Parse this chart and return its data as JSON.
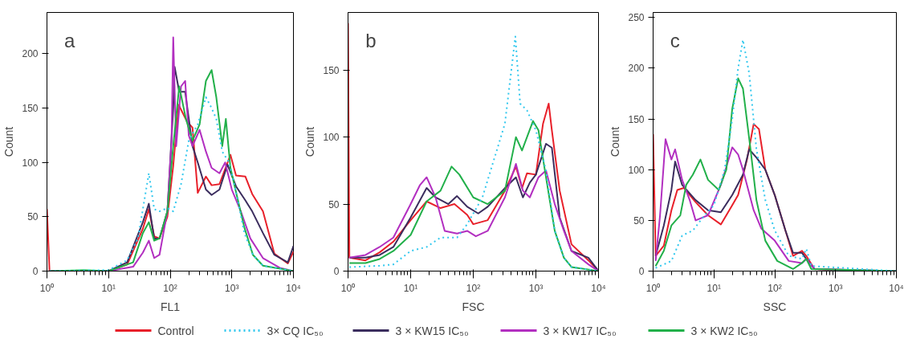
{
  "chart_data": [
    {
      "type": "line",
      "annotations": [
        "a"
      ],
      "xlabel": "FL1",
      "ylabel": "Count",
      "log": "x",
      "grid": false,
      "legend": "bottom",
      "marker": "none",
      "xlim": [
        1,
        10000
      ],
      "xticks": [
        {
          "value": 1,
          "label": "10⁰"
        },
        {
          "value": 10,
          "label": "10¹"
        },
        {
          "value": 100,
          "label": "10²"
        },
        {
          "value": 1000,
          "label": "10³"
        },
        {
          "value": 10000,
          "label": "10⁴"
        }
      ],
      "ylim": [
        0,
        238
      ],
      "yticks": [
        0,
        50,
        100,
        150,
        200
      ],
      "series": [
        {
          "name": "Control",
          "color": "#e8202a",
          "x": [
            1,
            1.1,
            10,
            20,
            36,
            45,
            55,
            67,
            90,
            112,
            137,
            186,
            230,
            280,
            380,
            470,
            630,
            950,
            1170,
            1660,
            2140,
            3200,
            4900,
            8100,
            10000
          ],
          "values": [
            57,
            0,
            0,
            6,
            39,
            57,
            32,
            30,
            50,
            97,
            153,
            138,
            132,
            72,
            87,
            79,
            80,
            107,
            88,
            87,
            71,
            55,
            16,
            7,
            18
          ]
        },
        {
          "name": "3× CQ IC₅₀",
          "color": "#33c8ee",
          "line_style": "dotted",
          "x": [
            1.1,
            10,
            20,
            30,
            45,
            55,
            67,
            90,
            112,
            150,
            200,
            280,
            380,
            470,
            560,
            700,
            900,
            1200,
            1600,
            2200,
            3200,
            10000
          ],
          "values": [
            0,
            1,
            10,
            30,
            90,
            57,
            55,
            58,
            55,
            80,
            120,
            135,
            160,
            150,
            140,
            110,
            100,
            70,
            35,
            15,
            5,
            0
          ]
        },
        {
          "name": "3 × KW15 IC₅₀",
          "color": "#3b2d5e",
          "x": [
            1.1,
            10,
            20,
            36,
            45,
            55,
            67,
            90,
            112,
            118,
            140,
            175,
            230,
            280,
            380,
            470,
            630,
            850,
            1170,
            1660,
            2140,
            3200,
            4900,
            8100,
            10000
          ],
          "values": [
            0,
            0,
            8,
            45,
            62,
            30,
            30,
            55,
            150,
            188,
            165,
            165,
            115,
            100,
            75,
            70,
            75,
            98,
            78,
            65,
            55,
            35,
            15,
            8,
            23
          ]
        },
        {
          "name": "3 × KW17 IC₅₀",
          "color": "#b22fc0",
          "x": [
            1.1,
            10,
            25,
            36,
            45,
            55,
            67,
            90,
            105,
            112,
            125,
            150,
            175,
            200,
            230,
            300,
            380,
            470,
            630,
            780,
            1000,
            1400,
            2000,
            3200,
            6000,
            10000
          ],
          "values": [
            0,
            0,
            4,
            17,
            28,
            12,
            15,
            55,
            120,
            215,
            115,
            170,
            175,
            125,
            115,
            130,
            110,
            95,
            90,
            100,
            75,
            55,
            30,
            12,
            3,
            0
          ]
        },
        {
          "name": "3 × KW2 IC₅₀",
          "color": "#22b04a",
          "x": [
            1.1,
            4,
            10,
            25,
            36,
            45,
            55,
            67,
            90,
            112,
            140,
            180,
            230,
            300,
            380,
            470,
            560,
            700,
            800,
            950,
            1200,
            1600,
            2200,
            3200,
            10000
          ],
          "values": [
            0,
            1,
            0,
            8,
            35,
            45,
            28,
            30,
            55,
            115,
            170,
            140,
            120,
            135,
            175,
            185,
            160,
            115,
            140,
            95,
            70,
            40,
            15,
            5,
            0
          ]
        }
      ]
    },
    {
      "type": "line",
      "annotations": [
        "b"
      ],
      "xlabel": "FSC",
      "ylabel": "Count",
      "log": "x",
      "grid": false,
      "marker": "none",
      "xlim": [
        1,
        10000
      ],
      "xticks": [
        {
          "value": 1,
          "label": "10⁰"
        },
        {
          "value": 10,
          "label": "10¹"
        },
        {
          "value": 100,
          "label": "10²"
        },
        {
          "value": 1000,
          "label": "10³"
        },
        {
          "value": 10000,
          "label": "10⁴"
        }
      ],
      "ylim": [
        0,
        193
      ],
      "yticks": [
        0,
        50,
        100,
        150
      ],
      "series": [
        {
          "color": "#e8202a",
          "x": [
            1,
            1.05,
            1.9,
            3.2,
            5.3,
            10,
            18,
            30,
            50,
            80,
            100,
            170,
            320,
            480,
            600,
            720,
            1000,
            1300,
            1600,
            1800,
            2400,
            3700,
            6900,
            10000
          ],
          "values": [
            185,
            10,
            8,
            14,
            22,
            38,
            52,
            47,
            50,
            42,
            35,
            38,
            60,
            78,
            62,
            73,
            72,
            110,
            125,
            105,
            60,
            20,
            8,
            0
          ]
        },
        {
          "color": "#33c8ee",
          "line_style": "dotted",
          "x": [
            1.05,
            3.2,
            5.3,
            10,
            18,
            30,
            55,
            80,
            140,
            220,
            320,
            470,
            560,
            720,
            1000,
            1450,
            2000,
            2800,
            3700,
            10000
          ],
          "values": [
            3,
            4,
            5,
            15,
            18,
            25,
            25,
            35,
            55,
            85,
            110,
            175,
            125,
            120,
            105,
            75,
            30,
            10,
            3,
            0
          ]
        },
        {
          "color": "#3b2d5e",
          "x": [
            1.05,
            1.9,
            3.2,
            5.3,
            10,
            18,
            25,
            40,
            55,
            80,
            120,
            170,
            320,
            480,
            620,
            800,
            1000,
            1450,
            1800,
            2400,
            3700,
            6900,
            10000
          ],
          "values": [
            10,
            10,
            12,
            18,
            40,
            62,
            55,
            50,
            56,
            48,
            43,
            48,
            62,
            70,
            55,
            66,
            72,
            95,
            92,
            40,
            15,
            10,
            0
          ]
        },
        {
          "color": "#b22fc0",
          "x": [
            1.05,
            1.9,
            3.2,
            5.3,
            10,
            14,
            18,
            25,
            35,
            55,
            80,
            110,
            170,
            320,
            480,
            620,
            800,
            1100,
            1450,
            2000,
            2800,
            3700,
            6900,
            10000
          ],
          "values": [
            10,
            12,
            18,
            25,
            50,
            64,
            70,
            55,
            30,
            28,
            30,
            26,
            30,
            55,
            80,
            60,
            55,
            70,
            75,
            50,
            30,
            15,
            5,
            0
          ]
        },
        {
          "color": "#22b04a",
          "x": [
            1.05,
            1.9,
            3.2,
            5.3,
            10,
            18,
            30,
            45,
            60,
            100,
            170,
            320,
            480,
            600,
            900,
            1100,
            1450,
            2000,
            2800,
            3700,
            10000
          ],
          "values": [
            6,
            6,
            9,
            15,
            27,
            52,
            60,
            78,
            72,
            55,
            50,
            60,
            100,
            90,
            112,
            105,
            70,
            30,
            10,
            3,
            0
          ]
        }
      ]
    },
    {
      "type": "line",
      "annotations": [
        "c"
      ],
      "xlabel": "SSC",
      "ylabel": "Count",
      "log": "x",
      "grid": false,
      "marker": "none",
      "xlim": [
        1,
        10000
      ],
      "xticks": [
        {
          "value": 1,
          "label": "10⁰"
        },
        {
          "value": 10,
          "label": "10¹"
        },
        {
          "value": 100,
          "label": "10²"
        },
        {
          "value": 1000,
          "label": "10³"
        },
        {
          "value": 10000,
          "label": "10⁴"
        }
      ],
      "ylim": [
        0,
        255
      ],
      "yticks": [
        0,
        50,
        100,
        150,
        200,
        250
      ],
      "series": [
        {
          "color": "#e8202a",
          "x": [
            1,
            1.1,
            1.5,
            2.0,
            2.5,
            3.2,
            5,
            8,
            13,
            20,
            25,
            35,
            45,
            55,
            70,
            100,
            150,
            200,
            280,
            330,
            450,
            1000,
            10000
          ],
          "values": [
            135,
            15,
            25,
            60,
            80,
            82,
            68,
            55,
            46,
            65,
            75,
            110,
            145,
            140,
            100,
            75,
            40,
            15,
            20,
            15,
            2,
            1,
            0
          ]
        },
        {
          "color": "#33c8ee",
          "line_style": "dotted",
          "x": [
            1.1,
            2,
            3,
            4.5,
            7,
            10,
            15,
            20,
            25,
            30,
            38,
            50,
            70,
            100,
            170,
            280,
            330,
            400,
            10000
          ],
          "values": [
            3,
            10,
            35,
            40,
            55,
            65,
            100,
            150,
            200,
            228,
            195,
            120,
            70,
            40,
            15,
            12,
            22,
            5,
            0
          ]
        },
        {
          "color": "#3b2d5e",
          "x": [
            1.1,
            1.5,
            2.0,
            2.3,
            3,
            5,
            8,
            13,
            20,
            30,
            38,
            50,
            70,
            100,
            150,
            200,
            280,
            330,
            450,
            10000
          ],
          "values": [
            15,
            45,
            80,
            108,
            85,
            70,
            60,
            58,
            75,
            95,
            120,
            112,
            100,
            75,
            40,
            18,
            18,
            12,
            2,
            0
          ]
        },
        {
          "color": "#b22fc0",
          "x": [
            1.1,
            1.3,
            1.6,
            2,
            2.3,
            3,
            4,
            5,
            8,
            13,
            20,
            25,
            30,
            45,
            60,
            100,
            170,
            280,
            330,
            450,
            10000
          ],
          "values": [
            10,
            55,
            130,
            110,
            120,
            90,
            70,
            50,
            55,
            85,
            122,
            115,
            100,
            60,
            42,
            30,
            10,
            8,
            12,
            2,
            0
          ]
        },
        {
          "color": "#22b04a",
          "x": [
            1.1,
            1.5,
            2,
            2.8,
            3.5,
            4.5,
            6,
            8,
            12,
            16,
            20,
            25,
            30,
            40,
            50,
            70,
            110,
            200,
            280,
            330,
            400,
            10000
          ],
          "values": [
            5,
            20,
            45,
            55,
            85,
            95,
            110,
            90,
            80,
            100,
            160,
            190,
            180,
            120,
            70,
            30,
            10,
            2,
            8,
            12,
            2,
            0
          ]
        }
      ]
    }
  ]
}
